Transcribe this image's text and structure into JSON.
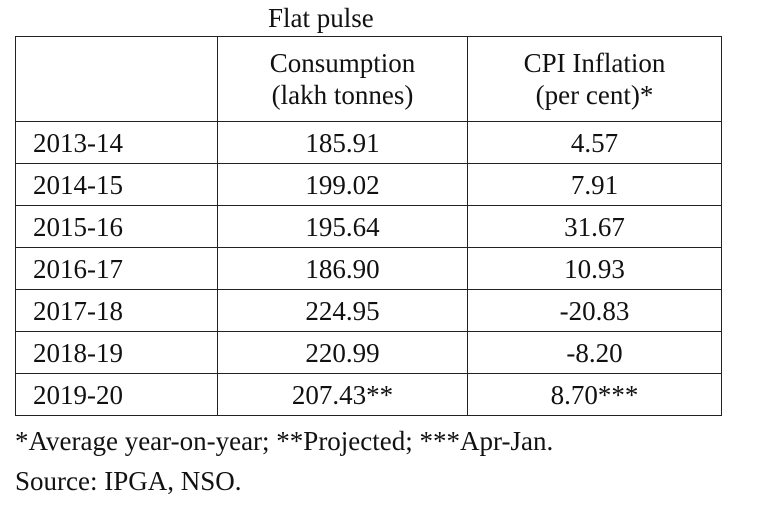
{
  "title": "Flat pulse",
  "table": {
    "header": {
      "year": "",
      "consumption": [
        "Consumption",
        "(lakh tonnes)"
      ],
      "cpi": [
        "CPI Inflation",
        "(per cent)*"
      ]
    },
    "rows": [
      {
        "year": "2013-14",
        "consumption": "185.91",
        "cpi": "4.57"
      },
      {
        "year": "2014-15",
        "consumption": "199.02",
        "cpi": "7.91"
      },
      {
        "year": "2015-16",
        "consumption": "195.64",
        "cpi": "31.67"
      },
      {
        "year": "2016-17",
        "consumption": "186.90",
        "cpi": "10.93"
      },
      {
        "year": "2017-18",
        "consumption": "224.95",
        "cpi": "-20.83"
      },
      {
        "year": "2018-19",
        "consumption": "220.99",
        "cpi": "-8.20"
      },
      {
        "year": "2019-20",
        "consumption": "207.43**",
        "cpi": "8.70***"
      }
    ]
  },
  "notes": [
    "*Average year-on-year; **Projected; ***Apr-Jan.",
    "Source: IPGA, NSO."
  ]
}
